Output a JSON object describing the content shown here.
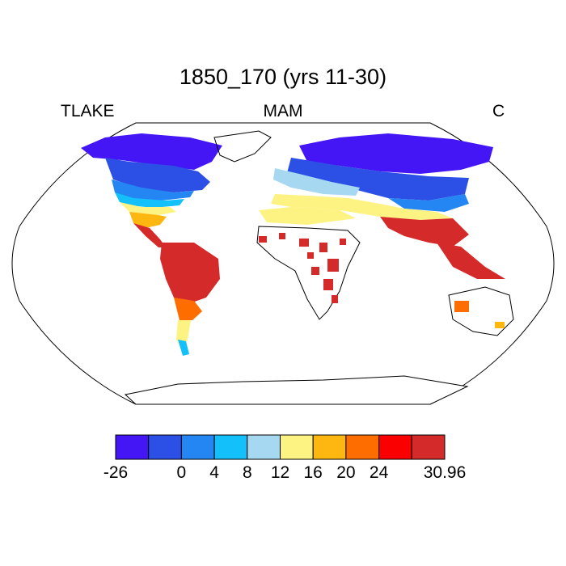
{
  "title": "1850_170 (yrs 11-30)",
  "subtitle_left": "TLAKE",
  "subtitle_center": "MAM",
  "subtitle_right": "C",
  "colorbar": {
    "colors": [
      "#4516f5",
      "#2c4fe6",
      "#2486f2",
      "#13c0f9",
      "#a6d9f1",
      "#fdf383",
      "#feb710",
      "#fe6d00",
      "#fa0000",
      "#d52a2a"
    ],
    "tick_labels": [
      "-26",
      "0",
      "4",
      "8",
      "12",
      "16",
      "20",
      "24",
      "30.96"
    ],
    "tick_boundary_index": [
      0,
      2,
      3,
      4,
      5,
      6,
      7,
      8,
      10
    ]
  },
  "map": {
    "projection": "robinson",
    "ocean_color": "#ffffff",
    "coastline_color": "#000000"
  }
}
